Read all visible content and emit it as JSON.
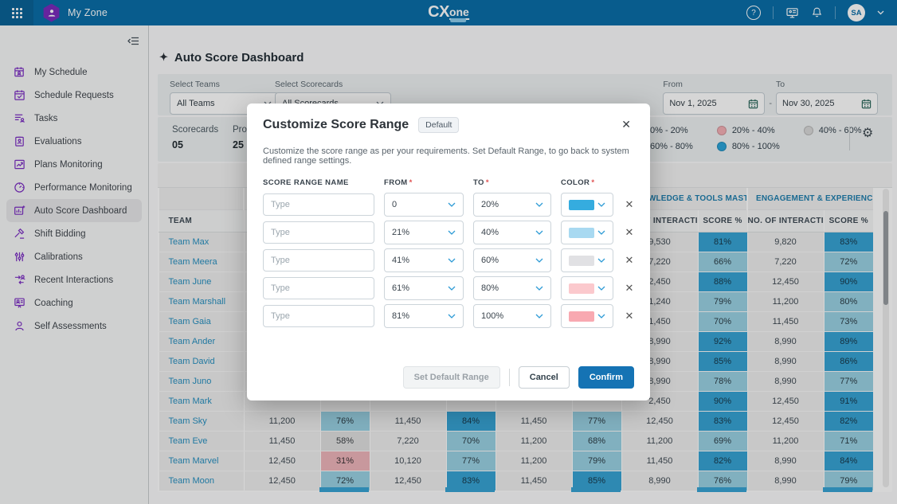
{
  "topbar": {
    "app_name": "My Zone",
    "logo_bold": "CX",
    "logo_light": "one",
    "help_glyph": "?",
    "avatar_initials": "SA"
  },
  "sidebar": {
    "items": [
      {
        "label": "My Schedule",
        "icon": "my-schedule",
        "active": false
      },
      {
        "label": "Schedule Requests",
        "icon": "schedule-requests",
        "active": false
      },
      {
        "label": "Tasks",
        "icon": "tasks",
        "active": false
      },
      {
        "label": "Evaluations",
        "icon": "evaluations",
        "active": false
      },
      {
        "label": "Plans Monitoring",
        "icon": "plans-monitoring",
        "active": false
      },
      {
        "label": "Performance Monitoring",
        "icon": "performance-monitoring",
        "active": false
      },
      {
        "label": "Auto Score Dashboard",
        "icon": "auto-score-dashboard",
        "active": true
      },
      {
        "label": "Shift Bidding",
        "icon": "shift-bidding",
        "active": false
      },
      {
        "label": "Calibrations",
        "icon": "calibrations",
        "active": false
      },
      {
        "label": "Recent Interactions",
        "icon": "recent-interactions",
        "active": false
      },
      {
        "label": "Coaching",
        "icon": "coaching",
        "active": false
      },
      {
        "label": "Self Assessments",
        "icon": "self-assessments",
        "active": false
      }
    ]
  },
  "page": {
    "title": "Auto Score Dashboard",
    "sparkle_glyph": "✦"
  },
  "filters": {
    "teams_label": "Select Teams",
    "teams_value": "All Teams",
    "scorecards_label": "Select Scorecards",
    "scorecards_value": "All Scorecards",
    "from_label": "From",
    "from_value": "Nov 1, 2025",
    "to_label": "To",
    "to_value": "Nov 30, 2025",
    "range_separator": "-"
  },
  "summary": {
    "stats": [
      {
        "label": "Scorecards",
        "value": "05"
      },
      {
        "label": "Pro",
        "value": "25"
      }
    ],
    "gear_glyph": "⚙"
  },
  "legend": {
    "items": [
      {
        "label": "0% - 20%",
        "color": "#ef8e92"
      },
      {
        "label": "20% - 40%",
        "color": "#f5b0b6"
      },
      {
        "label": "40% - 60%",
        "color": "#d9d9d9"
      },
      {
        "label": "60% - 80%",
        "color": "#93d2e9"
      },
      {
        "label": "80% - 100%",
        "color": "#2ba5da"
      }
    ]
  },
  "table": {
    "team_header": "TEAM",
    "groups": [
      {
        "label": "",
        "value_header": "",
        "score_header": ""
      },
      {
        "label": "",
        "value_header": "",
        "score_header": ""
      },
      {
        "label": "",
        "value_header": "",
        "score_header": ""
      },
      {
        "label": "KNOWLEDGE & TOOLS MASTERY...",
        "value_header": "NO. OF INTERACTI...",
        "score_header": "SCORE %"
      },
      {
        "label": "ENGAGEMENT & EXPERIENCE",
        "value_header": "NO. OF INTERACTI...",
        "score_header": "SCORE %"
      }
    ],
    "rows": [
      {
        "team": "Team Max",
        "cells": [
          "",
          "",
          "",
          "",
          "",
          "",
          "9,530",
          "81%",
          "9,820",
          "83%"
        ]
      },
      {
        "team": "Team Meera",
        "cells": [
          "",
          "",
          "",
          "",
          "",
          "",
          "7,220",
          "66%",
          "7,220",
          "72%"
        ]
      },
      {
        "team": "Team June",
        "cells": [
          "",
          "",
          "",
          "",
          "",
          "",
          "2,450",
          "88%",
          "12,450",
          "90%"
        ]
      },
      {
        "team": "Team Marshall",
        "cells": [
          "",
          "",
          "",
          "",
          "",
          "",
          "1,240",
          "79%",
          "11,200",
          "80%"
        ]
      },
      {
        "team": "Team Gaia",
        "cells": [
          "",
          "",
          "",
          "",
          "",
          "",
          "1,450",
          "70%",
          "11,450",
          "73%"
        ]
      },
      {
        "team": "Team Ander",
        "cells": [
          "",
          "",
          "",
          "",
          "",
          "",
          "8,990",
          "92%",
          "8,990",
          "89%"
        ]
      },
      {
        "team": "Team David",
        "cells": [
          "",
          "",
          "",
          "",
          "",
          "",
          "8,990",
          "85%",
          "8,990",
          "86%"
        ]
      },
      {
        "team": "Team Juno",
        "cells": [
          "",
          "",
          "",
          "",
          "",
          "",
          "8,990",
          "78%",
          "8,990",
          "77%"
        ]
      },
      {
        "team": "Team Mark",
        "cells": [
          "",
          "",
          "",
          "",
          "",
          "",
          "2,450",
          "90%",
          "12,450",
          "91%"
        ]
      },
      {
        "team": "Team Sky",
        "cells": [
          "11,200",
          "76%",
          "11,450",
          "84%",
          "11,450",
          "77%",
          "12,450",
          "83%",
          "12,450",
          "82%"
        ]
      },
      {
        "team": "Team Eve",
        "cells": [
          "11,450",
          "58%",
          "7,220",
          "70%",
          "11,200",
          "68%",
          "11,200",
          "69%",
          "11,200",
          "71%"
        ]
      },
      {
        "team": "Team Marvel",
        "cells": [
          "12,450",
          "31%",
          "10,120",
          "77%",
          "11,200",
          "79%",
          "11,450",
          "82%",
          "8,990",
          "84%"
        ]
      },
      {
        "team": "Team Moon",
        "cells": [
          "12,450",
          "72%",
          "12,450",
          "83%",
          "11,450",
          "85%",
          "8,990",
          "76%",
          "8,990",
          "79%"
        ]
      }
    ],
    "band_colors": {
      "low": "#efb6bb",
      "mid": "#e0e0e0",
      "high": "#9ad2e4",
      "top": "#37a4d4"
    }
  },
  "modal": {
    "title": "Customize Score Range",
    "badge": "Default",
    "close_glyph": "✕",
    "remove_glyph": "✕",
    "description": "Customize the score range as per your requirements. Set Default Range, to go back to system defined range settings.",
    "required_marker": "*",
    "columns": {
      "name": "SCORE RANGE NAME",
      "from": "FROM",
      "to": "TO",
      "color": "COLOR"
    },
    "name_placeholder": "Type",
    "rows": [
      {
        "name": "",
        "from": "0",
        "to": "20%",
        "color": "#35acdf"
      },
      {
        "name": "",
        "from": "21%",
        "to": "40%",
        "color": "#a8d9f1"
      },
      {
        "name": "",
        "from": "41%",
        "to": "60%",
        "color": "#e1e1e4"
      },
      {
        "name": "",
        "from": "61%",
        "to": "80%",
        "color": "#fbc9cd"
      },
      {
        "name": "",
        "from": "81%",
        "to": "100%",
        "color": "#f8a9b1"
      }
    ],
    "buttons": {
      "set_default": "Set Default Range",
      "cancel": "Cancel",
      "confirm": "Confirm"
    },
    "accent_color": "#1573b4"
  }
}
